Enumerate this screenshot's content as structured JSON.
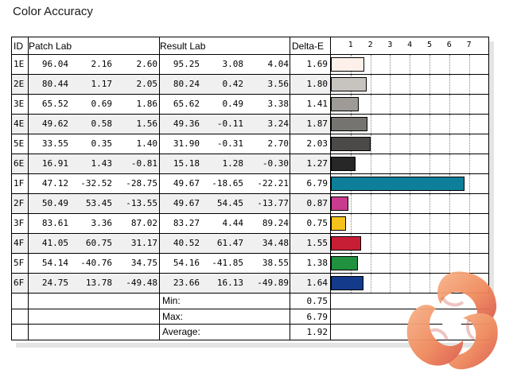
{
  "title": "Color Accuracy",
  "columns": {
    "id": "ID",
    "patch": "Patch Lab",
    "result": "Result Lab",
    "delta": "Delta-E"
  },
  "axis_ticks": [
    "1",
    "2",
    "3",
    "4",
    "5",
    "6",
    "7"
  ],
  "rows": [
    {
      "id": "1E",
      "p1": "96.04",
      "p2": "2.16",
      "p3": "2.60",
      "r1": "95.25",
      "r2": "3.08",
      "r3": "4.04",
      "de": "1.69",
      "color": "#fdf0ea"
    },
    {
      "id": "2E",
      "p1": "80.44",
      "p2": "1.17",
      "p3": "2.05",
      "r1": "80.24",
      "r2": "0.42",
      "r3": "3.56",
      "de": "1.80",
      "color": "#c7c4bf"
    },
    {
      "id": "3E",
      "p1": "65.52",
      "p2": "0.69",
      "p3": "1.86",
      "r1": "65.62",
      "r2": "0.49",
      "r3": "3.38",
      "de": "1.41",
      "color": "#9e9b97"
    },
    {
      "id": "4E",
      "p1": "49.62",
      "p2": "0.58",
      "p3": "1.56",
      "r1": "49.36",
      "r2": "-0.11",
      "r3": "3.24",
      "de": "1.87",
      "color": "#767471"
    },
    {
      "id": "5E",
      "p1": "33.55",
      "p2": "0.35",
      "p3": "1.40",
      "r1": "31.90",
      "r2": "-0.31",
      "r3": "2.70",
      "de": "2.03",
      "color": "#4b4a48"
    },
    {
      "id": "6E",
      "p1": "16.91",
      "p2": "1.43",
      "p3": "-0.81",
      "r1": "15.18",
      "r2": "1.28",
      "r3": "-0.30",
      "de": "1.27",
      "color": "#282727"
    },
    {
      "id": "1F",
      "p1": "47.12",
      "p2": "-32.52",
      "p3": "-28.75",
      "r1": "49.67",
      "r2": "-18.65",
      "r3": "-22.21",
      "de": "6.79",
      "color": "#0e7f9a"
    },
    {
      "id": "2F",
      "p1": "50.49",
      "p2": "53.45",
      "p3": "-13.55",
      "r1": "49.67",
      "r2": "54.45",
      "r3": "-13.77",
      "de": "0.87",
      "color": "#c93b8e"
    },
    {
      "id": "3F",
      "p1": "83.61",
      "p2": "3.36",
      "p3": "87.02",
      "r1": "83.27",
      "r2": "4.44",
      "r3": "89.24",
      "de": "0.75",
      "color": "#f6c21c"
    },
    {
      "id": "4F",
      "p1": "41.05",
      "p2": "60.75",
      "p3": "31.17",
      "r1": "40.52",
      "r2": "61.47",
      "r3": "34.48",
      "de": "1.55",
      "color": "#c81e35"
    },
    {
      "id": "5F",
      "p1": "54.14",
      "p2": "-40.76",
      "p3": "34.75",
      "r1": "54.16",
      "r2": "-41.85",
      "r3": "38.55",
      "de": "1.38",
      "color": "#20913f"
    },
    {
      "id": "6F",
      "p1": "24.75",
      "p2": "13.78",
      "p3": "-49.48",
      "r1": "23.66",
      "r2": "16.13",
      "r3": "-49.89",
      "de": "1.64",
      "color": "#143a8b"
    }
  ],
  "summary": [
    {
      "label": "Min:",
      "value": "0.75"
    },
    {
      "label": "Max:",
      "value": "6.79"
    },
    {
      "label": "Average:",
      "value": "1.92"
    }
  ]
}
